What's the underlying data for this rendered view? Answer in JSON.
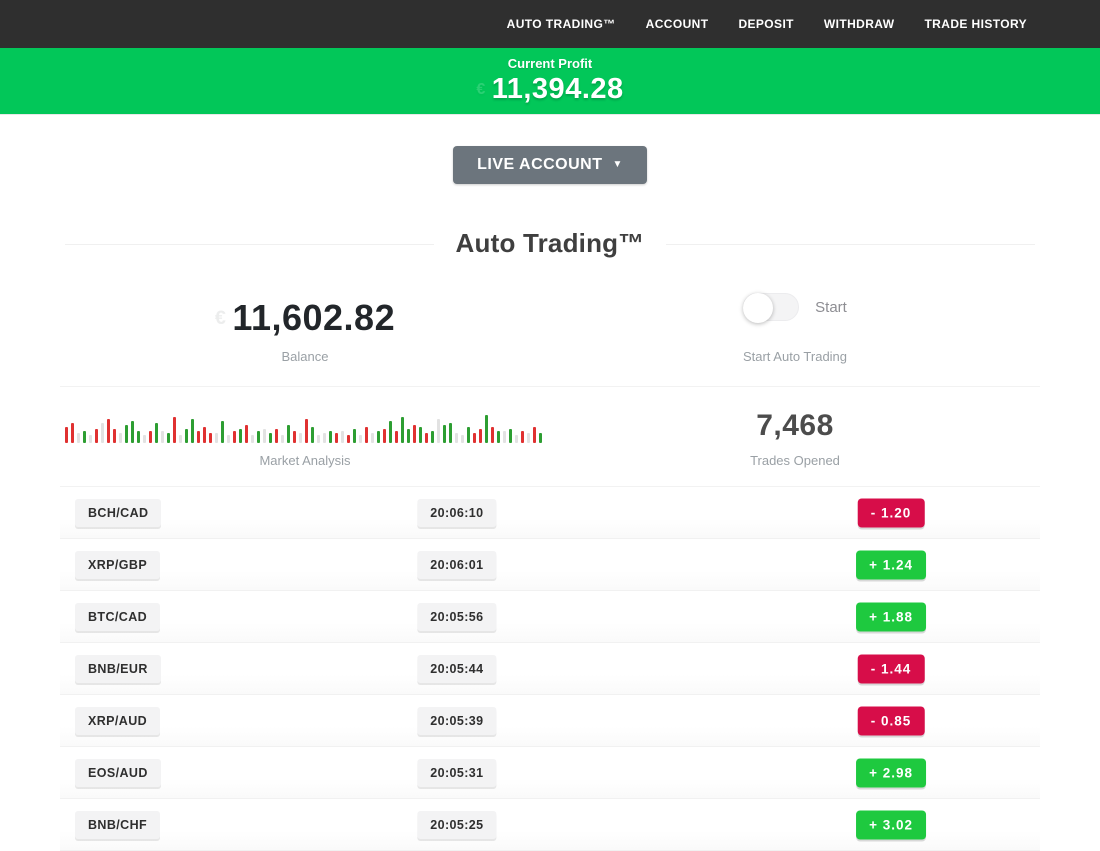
{
  "nav": {
    "items": [
      {
        "label": "AUTO TRADING™"
      },
      {
        "label": "ACCOUNT"
      },
      {
        "label": "DEPOSIT"
      },
      {
        "label": "WITHDRAW"
      },
      {
        "label": "TRADE HISTORY"
      }
    ]
  },
  "profit_banner": {
    "label": "Current Profit",
    "value": "11,394.28",
    "faint_symbol": "€",
    "background_color": "#02c759"
  },
  "account_selector": {
    "label": "LIVE ACCOUNT",
    "caret": "▼",
    "background_color": "#6c757d"
  },
  "section": {
    "title": "Auto Trading™",
    "balance": {
      "value": "11,602.82",
      "faint_symbol": "€",
      "label": "Balance"
    },
    "auto_trading_toggle": {
      "state": "off",
      "toggle_label": "Start",
      "caption": "Start Auto Trading"
    },
    "market_analysis": {
      "label": "Market Analysis"
    },
    "trades_opened": {
      "value": "7,468",
      "label": "Trades Opened"
    }
  },
  "trades": [
    {
      "pair": "BCH/CAD",
      "time": "20:06:10",
      "change": "-  1.20",
      "direction": "loss"
    },
    {
      "pair": "XRP/GBP",
      "time": "20:06:01",
      "change": "+  1.24",
      "direction": "gain"
    },
    {
      "pair": "BTC/CAD",
      "time": "20:05:56",
      "change": "+  1.88",
      "direction": "gain"
    },
    {
      "pair": "BNB/EUR",
      "time": "20:05:44",
      "change": "-  1.44",
      "direction": "loss"
    },
    {
      "pair": "XRP/AUD",
      "time": "20:05:39",
      "change": "-  0.85",
      "direction": "loss"
    },
    {
      "pair": "EOS/AUD",
      "time": "20:05:31",
      "change": "+  2.98",
      "direction": "gain"
    },
    {
      "pair": "BNB/CHF",
      "time": "20:05:25",
      "change": "+  3.02",
      "direction": "gain"
    }
  ],
  "chart_data": {
    "type": "bar",
    "title": "Market Analysis",
    "description": "decorative candlestick-style sparkline of red/green/neutral bars, bottom-aligned, max height 30px",
    "color_map": {
      "r": "#e03131",
      "g": "#2d9e32",
      "n": "#e2e2e2"
    },
    "bars": [
      "r16",
      "r20",
      "n10",
      "g12",
      "n8",
      "r14",
      "n20",
      "r24",
      "r14",
      "n10",
      "g18",
      "g22",
      "g12",
      "n8",
      "r12",
      "g20",
      "n12",
      "g10",
      "r26",
      "n8",
      "g14",
      "g24",
      "r12",
      "r16",
      "r10",
      "n10",
      "g22",
      "n8",
      "r12",
      "g14",
      "r18",
      "n8",
      "g12",
      "n14",
      "g10",
      "r14",
      "n8",
      "g18",
      "r12",
      "n10",
      "r24",
      "g16",
      "n8",
      "n10",
      "g12",
      "r10",
      "n12",
      "r8",
      "g14",
      "n8",
      "r16",
      "n10",
      "g12",
      "r14",
      "g22",
      "r12",
      "g26",
      "g14",
      "r18",
      "g16",
      "r10",
      "g12",
      "n24",
      "g18",
      "g20",
      "n10",
      "n8",
      "g16",
      "r10",
      "r14",
      "g28",
      "r16",
      "g12",
      "n12",
      "g14",
      "n8",
      "r12",
      "n10",
      "r16",
      "g10"
    ]
  },
  "colors": {
    "nav_background": "#2f2f2f",
    "banner_green": "#02c759",
    "gain_badge_green": "#1ec93f",
    "loss_badge_red": "#d70d49",
    "button_gray": "#6c757d"
  }
}
